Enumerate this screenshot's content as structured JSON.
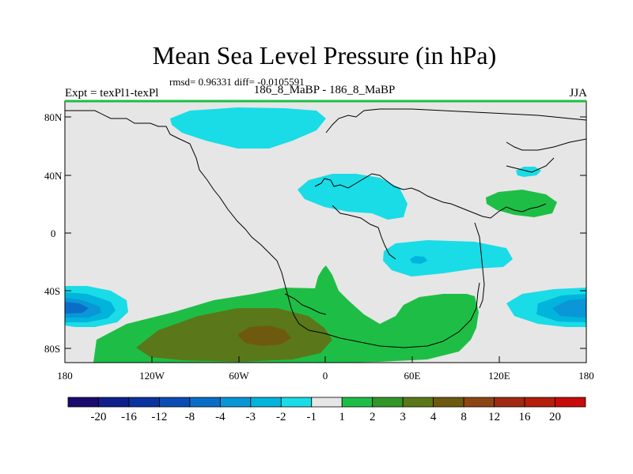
{
  "title": "Mean Sea Level Pressure (in hPa)",
  "stats": "rmsd= 0.96331 diff= -0.0105591",
  "left_label": "Expt = texPl1-texPl",
  "center_label": "186_8_MaBP - 186_8_MaBP",
  "right_label": "JJA",
  "y_ticks": [
    "80N",
    "40N",
    "0",
    "40S",
    "80S"
  ],
  "x_ticks": [
    "180",
    "120W",
    "60W",
    "0",
    "60E",
    "120E",
    "180"
  ],
  "colorbar": {
    "labels": [
      "-20",
      "-16",
      "-12",
      "-8",
      "-4",
      "-3",
      "-2",
      "-1",
      "1",
      "2",
      "3",
      "4",
      "8",
      "12",
      "16",
      "20"
    ],
    "colors": [
      "#1a0a6e",
      "#0f1e8c",
      "#0a32a0",
      "#0a4cb4",
      "#0a6ec8",
      "#0a96d7",
      "#00b4dc",
      "#19dce6",
      "#e6e6e6",
      "#1ebe46",
      "#329628",
      "#5a7819",
      "#6e5a0f",
      "#8c4614",
      "#a02814",
      "#b41e0a",
      "#c80a0a"
    ]
  },
  "colors": {
    "background_land": "#e6e6e6",
    "frame_top": "#1ebe46"
  }
}
